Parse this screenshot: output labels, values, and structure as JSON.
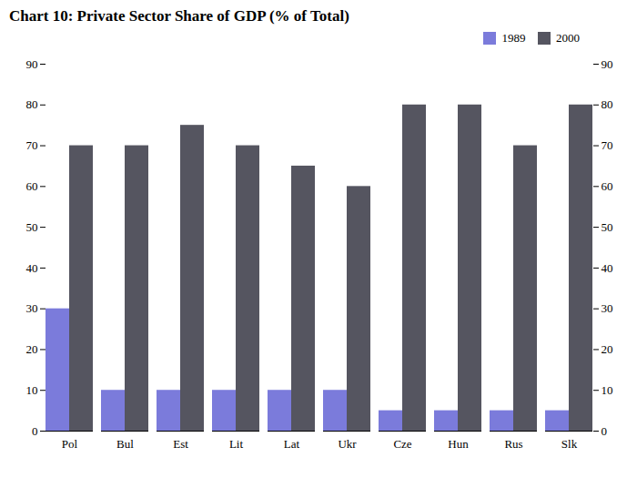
{
  "chart_data": {
    "type": "bar",
    "title": "Chart 10: Private Sector Share of GDP (% of Total)",
    "categories": [
      "Pol",
      "Bul",
      "Est",
      "Lit",
      "Lat",
      "Ukr",
      "Cze",
      "Hun",
      "Rus",
      "Slk"
    ],
    "series": [
      {
        "name": "1989",
        "color": "#7b7bdb",
        "values": [
          30,
          10,
          10,
          10,
          10,
          10,
          5,
          5,
          5,
          5
        ]
      },
      {
        "name": "2000",
        "color": "#555560",
        "values": [
          70,
          70,
          75,
          70,
          65,
          60,
          80,
          80,
          70,
          80
        ]
      }
    ],
    "ylim": [
      0,
      90
    ],
    "yticks": [
      0,
      10,
      20,
      30,
      40,
      50,
      60,
      70,
      80,
      90
    ],
    "y2lim": [
      0,
      90
    ],
    "y2ticks": [
      0,
      10,
      20,
      30,
      40,
      50,
      60,
      70,
      80,
      90
    ],
    "grid": false,
    "legend": "upper right"
  }
}
